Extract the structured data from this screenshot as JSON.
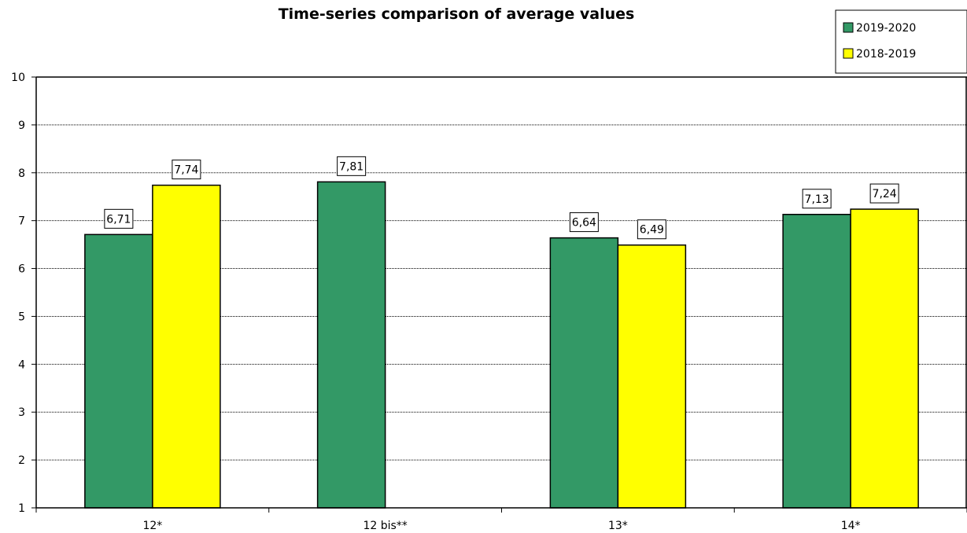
{
  "chart_data": {
    "type": "bar",
    "title": "Time-series comparison of average values",
    "xlabel": "",
    "ylabel": "",
    "categories": [
      "12*",
      "12 bis**",
      "13*",
      "14*"
    ],
    "ylim": [
      1,
      10
    ],
    "yticks": [
      1,
      2,
      3,
      4,
      5,
      6,
      7,
      8,
      9,
      10
    ],
    "grid": true,
    "legend_position": "top-right",
    "series": [
      {
        "name": "2019-2020",
        "color": "#339966",
        "values": [
          6.71,
          7.81,
          6.64,
          7.13
        ],
        "labels": [
          "6,71",
          "7,81",
          "6,64",
          "7,13"
        ]
      },
      {
        "name": "2018-2019",
        "color": "#ffff00",
        "values": [
          7.74,
          null,
          6.49,
          7.24
        ],
        "labels": [
          "7,74",
          "",
          "6,49",
          "7,24"
        ]
      }
    ]
  }
}
